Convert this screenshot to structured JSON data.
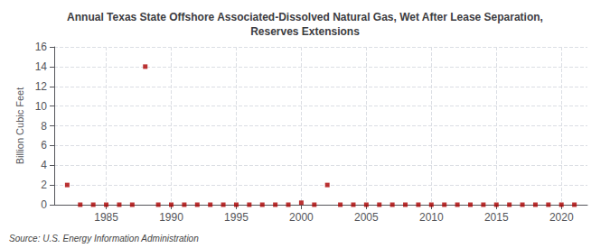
{
  "chart_data": {
    "type": "scatter",
    "title": "Annual Texas State Offshore Associated-Dissolved Natural Gas, Wet After Lease Separation,\nReserves Extensions",
    "ylabel": "Billion Cubic Feet",
    "annotations": [
      "Source: U.S. Energy Information Administration"
    ],
    "x": [
      1982,
      1983,
      1984,
      1985,
      1986,
      1987,
      1988,
      1989,
      1990,
      1991,
      1992,
      1993,
      1994,
      1995,
      1996,
      1997,
      1998,
      1999,
      2000,
      2001,
      2002,
      2003,
      2004,
      2005,
      2006,
      2007,
      2008,
      2009,
      2010,
      2011,
      2012,
      2013,
      2014,
      2015,
      2016,
      2017,
      2018,
      2019,
      2020,
      2021
    ],
    "values": [
      2.0,
      0.0,
      0.0,
      0.0,
      0.0,
      0.0,
      14.0,
      0.0,
      0.0,
      0.0,
      0.0,
      0.0,
      0.0,
      0.0,
      0.0,
      0.0,
      0.0,
      0.0,
      0.2,
      0.0,
      2.0,
      0.0,
      0.0,
      0.0,
      0.0,
      0.0,
      0.0,
      0.0,
      0.0,
      0.0,
      0.0,
      0.0,
      0.0,
      0.0,
      0.0,
      0.0,
      0.0,
      0.0,
      0.0,
      0.0
    ],
    "color": "#aa0000",
    "marker": "square",
    "xlim": [
      1981,
      2022
    ],
    "xticks": [
      1985,
      1990,
      1995,
      2000,
      2005,
      2010,
      2015,
      2020
    ],
    "ylim": [
      0,
      16
    ],
    "yticks": [
      0,
      2,
      4,
      6,
      8,
      10,
      12,
      14,
      16
    ],
    "grid": true
  }
}
